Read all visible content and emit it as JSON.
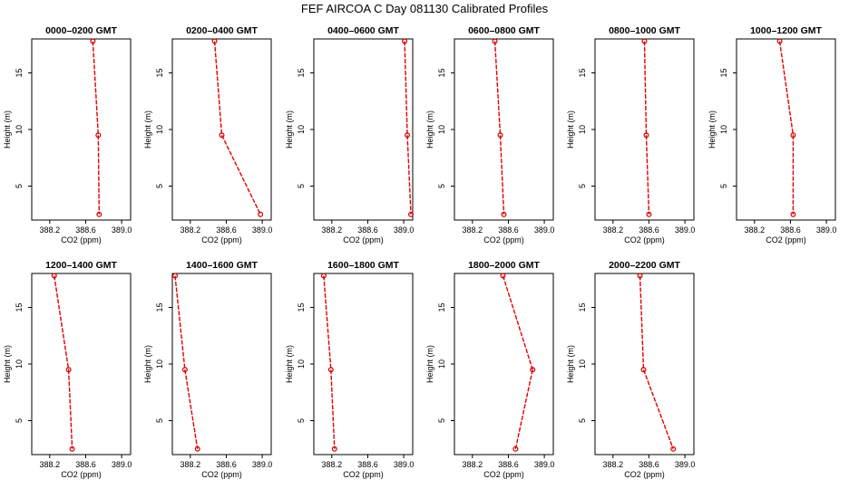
{
  "title": "FEF AIRCOA C  Day 081130  Calibrated Profiles",
  "styles": {
    "line_color": "#e00000",
    "point_color": "#cc0000",
    "axis_color": "#000000"
  },
  "chart_data": [
    {
      "type": "line",
      "title": "0000–0200 GMT",
      "xlabel": "CO2 (ppm)",
      "ylabel": "Height (m)",
      "xlim": [
        388.0,
        389.1
      ],
      "ylim": [
        2,
        18
      ],
      "xticks": [
        "388.2",
        "388.6",
        "389.0"
      ],
      "yticks": [
        "5",
        "10",
        "15"
      ],
      "series": [
        {
          "x": [
            388.68,
            388.74,
            388.75
          ],
          "y": [
            17.8,
            9.5,
            2.5
          ]
        }
      ]
    },
    {
      "type": "line",
      "title": "0200–0400 GMT",
      "xlabel": "CO2 (ppm)",
      "ylabel": "Height (m)",
      "xlim": [
        388.0,
        389.1
      ],
      "ylim": [
        2,
        18
      ],
      "xticks": [
        "388.2",
        "388.6",
        "389.0"
      ],
      "yticks": [
        "5",
        "10",
        "15"
      ],
      "series": [
        {
          "x": [
            388.47,
            388.55,
            388.98
          ],
          "y": [
            17.8,
            9.5,
            2.5
          ]
        }
      ]
    },
    {
      "type": "line",
      "title": "0400–0600 GMT",
      "xlabel": "CO2 (ppm)",
      "ylabel": "Height (m)",
      "xlim": [
        388.0,
        389.1
      ],
      "ylim": [
        2,
        18
      ],
      "xticks": [
        "388.2",
        "388.6",
        "389.0"
      ],
      "yticks": [
        "5",
        "10",
        "15"
      ],
      "series": [
        {
          "x": [
            389.01,
            389.04,
            389.08
          ],
          "y": [
            17.8,
            9.5,
            2.5
          ]
        }
      ]
    },
    {
      "type": "line",
      "title": "0600–0800 GMT",
      "xlabel": "CO2 (ppm)",
      "ylabel": "Height (m)",
      "xlim": [
        388.0,
        389.1
      ],
      "ylim": [
        2,
        18
      ],
      "xticks": [
        "388.2",
        "388.6",
        "389.0"
      ],
      "yticks": [
        "5",
        "10",
        "15"
      ],
      "series": [
        {
          "x": [
            388.45,
            388.51,
            388.55
          ],
          "y": [
            17.8,
            9.5,
            2.5
          ]
        }
      ]
    },
    {
      "type": "line",
      "title": "0800–1000 GMT",
      "xlabel": "CO2 (ppm)",
      "ylabel": "Height (m)",
      "xlim": [
        388.0,
        389.1
      ],
      "ylim": [
        2,
        18
      ],
      "xticks": [
        "388.2",
        "388.6",
        "389.0"
      ],
      "yticks": [
        "5",
        "10",
        "15"
      ],
      "series": [
        {
          "x": [
            388.55,
            388.57,
            388.6
          ],
          "y": [
            17.8,
            9.5,
            2.5
          ]
        }
      ]
    },
    {
      "type": "line",
      "title": "1000–1200 GMT",
      "xlabel": "CO2 (ppm)",
      "ylabel": "Height (m)",
      "xlim": [
        388.0,
        389.1
      ],
      "ylim": [
        2,
        18
      ],
      "xticks": [
        "388.2",
        "388.6",
        "389.0"
      ],
      "yticks": [
        "5",
        "10",
        "15"
      ],
      "series": [
        {
          "x": [
            388.48,
            388.63,
            388.63
          ],
          "y": [
            17.8,
            9.5,
            2.5
          ]
        }
      ]
    },
    {
      "type": "line",
      "title": "1200–1400 GMT",
      "xlabel": "CO2 (ppm)",
      "ylabel": "Height (m)",
      "xlim": [
        388.0,
        389.1
      ],
      "ylim": [
        2,
        18
      ],
      "xticks": [
        "388.2",
        "388.6",
        "389.0"
      ],
      "yticks": [
        "5",
        "10",
        "15"
      ],
      "series": [
        {
          "x": [
            388.25,
            388.41,
            388.45
          ],
          "y": [
            17.8,
            9.5,
            2.5
          ]
        }
      ]
    },
    {
      "type": "line",
      "title": "1400–1600 GMT",
      "xlabel": "CO2 (ppm)",
      "ylabel": "Height (m)",
      "xlim": [
        388.0,
        389.1
      ],
      "ylim": [
        2,
        18
      ],
      "xticks": [
        "388.2",
        "388.6",
        "389.0"
      ],
      "yticks": [
        "5",
        "10",
        "15"
      ],
      "series": [
        {
          "x": [
            388.03,
            388.14,
            388.28
          ],
          "y": [
            17.8,
            9.5,
            2.5
          ]
        }
      ]
    },
    {
      "type": "line",
      "title": "1600–1800 GMT",
      "xlabel": "CO2 (ppm)",
      "ylabel": "Height (m)",
      "xlim": [
        388.0,
        389.1
      ],
      "ylim": [
        2,
        18
      ],
      "xticks": [
        "388.2",
        "388.6",
        "389.0"
      ],
      "yticks": [
        "5",
        "10",
        "15"
      ],
      "series": [
        {
          "x": [
            388.11,
            388.19,
            388.23
          ],
          "y": [
            17.8,
            9.5,
            2.5
          ]
        }
      ]
    },
    {
      "type": "line",
      "title": "1800–2000 GMT",
      "xlabel": "CO2 (ppm)",
      "ylabel": "Height (m)",
      "xlim": [
        388.0,
        389.1
      ],
      "ylim": [
        2,
        18
      ],
      "xticks": [
        "388.2",
        "388.6",
        "389.0"
      ],
      "yticks": [
        "5",
        "10",
        "15"
      ],
      "series": [
        {
          "x": [
            388.54,
            388.87,
            388.68
          ],
          "y": [
            17.8,
            9.5,
            2.5
          ]
        }
      ]
    },
    {
      "type": "line",
      "title": "2000–2200 GMT",
      "xlabel": "CO2 (ppm)",
      "ylabel": "Height (m)",
      "xlim": [
        388.0,
        389.1
      ],
      "ylim": [
        2,
        18
      ],
      "xticks": [
        "388.2",
        "388.6",
        "389.0"
      ],
      "yticks": [
        "5",
        "10",
        "15"
      ],
      "series": [
        {
          "x": [
            388.5,
            388.54,
            388.87
          ],
          "y": [
            17.8,
            9.5,
            2.5
          ]
        }
      ]
    }
  ]
}
